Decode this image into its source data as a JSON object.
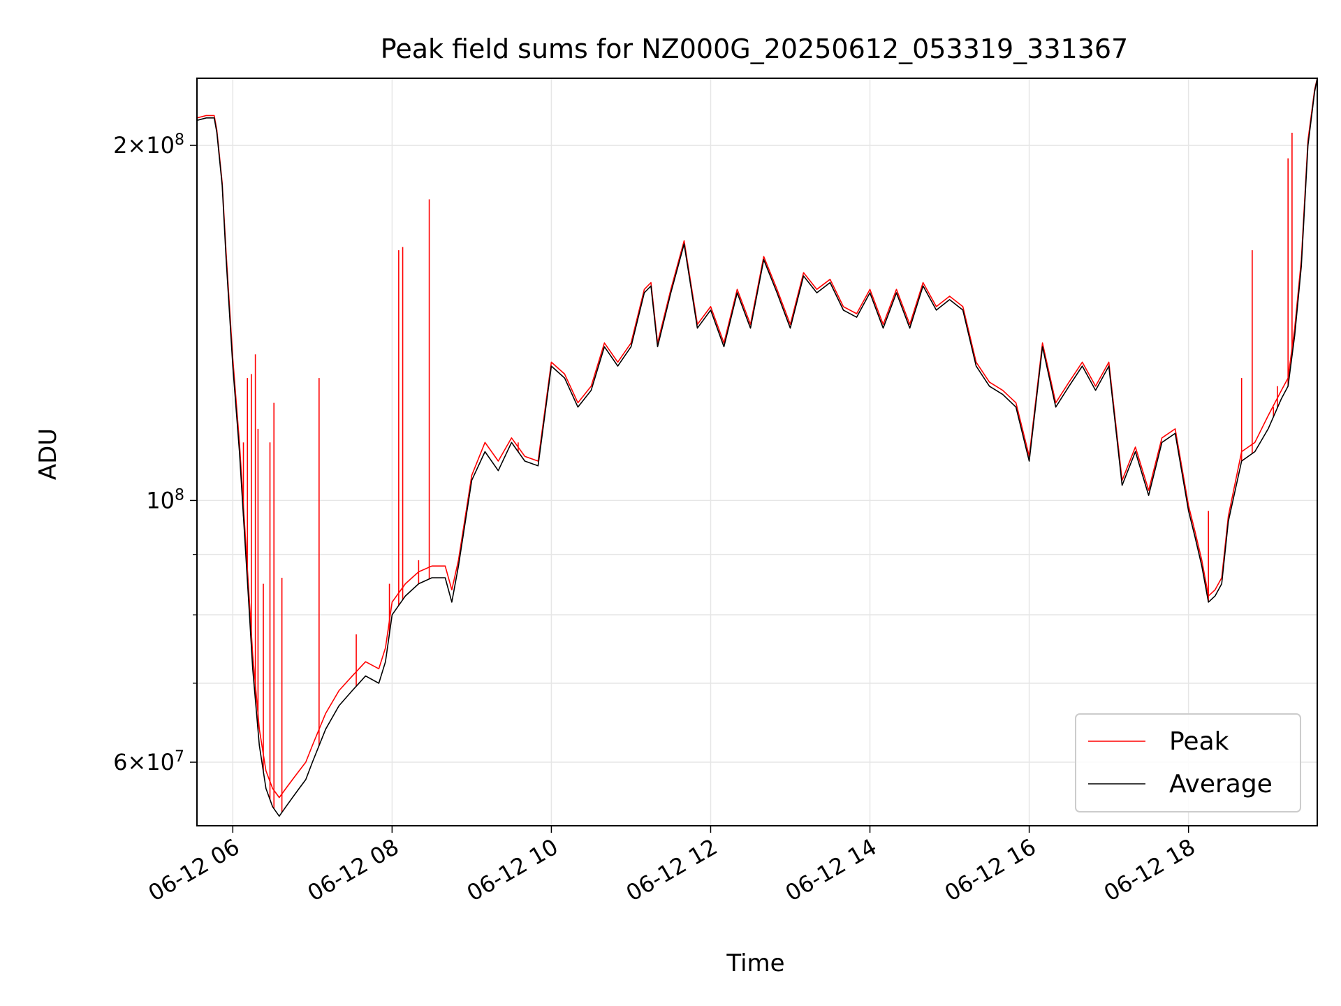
{
  "chart_data": {
    "type": "line",
    "title": "Peak field sums for NZ000G_20250612_053319_331367",
    "xlabel": "Time",
    "ylabel": "ADU",
    "yscale": "log",
    "xlim": [
      "2025-06-12T05:33",
      "2025-06-12T19:37"
    ],
    "ylim": [
      53000000,
      228000000
    ],
    "grid": true,
    "legend_position": "lower right",
    "x_ticks": [
      {
        "value": "2025-06-12T06:00",
        "label": "06-12 06"
      },
      {
        "value": "2025-06-12T08:00",
        "label": "06-12 08"
      },
      {
        "value": "2025-06-12T10:00",
        "label": "06-12 10"
      },
      {
        "value": "2025-06-12T12:00",
        "label": "06-12 12"
      },
      {
        "value": "2025-06-12T14:00",
        "label": "06-12 14"
      },
      {
        "value": "2025-06-12T16:00",
        "label": "06-12 16"
      },
      {
        "value": "2025-06-12T18:00",
        "label": "06-12 18"
      }
    ],
    "y_major_ticks": [
      {
        "value": 60000000,
        "mantissa": "6",
        "exp": "7"
      },
      {
        "value": 100000000,
        "mantissa": "",
        "exp": "8"
      },
      {
        "value": 200000000,
        "mantissa": "2",
        "exp": "8"
      }
    ],
    "y_minor_ticks": [
      70000000,
      80000000,
      90000000
    ],
    "series": [
      {
        "name": "Average",
        "color": "#000000",
        "x": [
          "2025-06-12T05:33",
          "2025-06-12T05:40",
          "2025-06-12T05:46",
          "2025-06-12T05:48",
          "2025-06-12T05:52",
          "2025-06-12T05:55",
          "2025-06-12T06:00",
          "2025-06-12T06:05",
          "2025-06-12T06:08",
          "2025-06-12T06:12",
          "2025-06-12T06:15",
          "2025-06-12T06:20",
          "2025-06-12T06:25",
          "2025-06-12T06:30",
          "2025-06-12T06:35",
          "2025-06-12T06:40",
          "2025-06-12T06:45",
          "2025-06-12T06:50",
          "2025-06-12T06:55",
          "2025-06-12T07:00",
          "2025-06-12T07:10",
          "2025-06-12T07:20",
          "2025-06-12T07:30",
          "2025-06-12T07:40",
          "2025-06-12T07:50",
          "2025-06-12T07:55",
          "2025-06-12T08:00",
          "2025-06-12T08:10",
          "2025-06-12T08:20",
          "2025-06-12T08:30",
          "2025-06-12T08:40",
          "2025-06-12T08:45",
          "2025-06-12T08:50",
          "2025-06-12T09:00",
          "2025-06-12T09:10",
          "2025-06-12T09:20",
          "2025-06-12T09:30",
          "2025-06-12T09:40",
          "2025-06-12T09:50",
          "2025-06-12T10:00",
          "2025-06-12T10:10",
          "2025-06-12T10:20",
          "2025-06-12T10:30",
          "2025-06-12T10:40",
          "2025-06-12T10:50",
          "2025-06-12T11:00",
          "2025-06-12T11:10",
          "2025-06-12T11:15",
          "2025-06-12T11:20",
          "2025-06-12T11:30",
          "2025-06-12T11:40",
          "2025-06-12T11:50",
          "2025-06-12T12:00",
          "2025-06-12T12:10",
          "2025-06-12T12:20",
          "2025-06-12T12:30",
          "2025-06-12T12:40",
          "2025-06-12T12:50",
          "2025-06-12T13:00",
          "2025-06-12T13:10",
          "2025-06-12T13:20",
          "2025-06-12T13:30",
          "2025-06-12T13:40",
          "2025-06-12T13:50",
          "2025-06-12T14:00",
          "2025-06-12T14:10",
          "2025-06-12T14:20",
          "2025-06-12T14:30",
          "2025-06-12T14:40",
          "2025-06-12T14:50",
          "2025-06-12T15:00",
          "2025-06-12T15:10",
          "2025-06-12T15:20",
          "2025-06-12T15:30",
          "2025-06-12T15:40",
          "2025-06-12T15:50",
          "2025-06-12T16:00",
          "2025-06-12T16:10",
          "2025-06-12T16:20",
          "2025-06-12T16:30",
          "2025-06-12T16:40",
          "2025-06-12T16:50",
          "2025-06-12T17:00",
          "2025-06-12T17:10",
          "2025-06-12T17:20",
          "2025-06-12T17:30",
          "2025-06-12T17:40",
          "2025-06-12T17:50",
          "2025-06-12T18:00",
          "2025-06-12T18:05",
          "2025-06-12T18:10",
          "2025-06-12T18:15",
          "2025-06-12T18:20",
          "2025-06-12T18:25",
          "2025-06-12T18:30",
          "2025-06-12T18:40",
          "2025-06-12T18:50",
          "2025-06-12T19:00",
          "2025-06-12T19:10",
          "2025-06-12T19:15",
          "2025-06-12T19:20",
          "2025-06-12T19:25",
          "2025-06-12T19:30",
          "2025-06-12T19:35",
          "2025-06-12T19:37"
        ],
        "values": [
          210000000,
          211000000,
          211000000,
          205000000,
          185000000,
          160000000,
          130000000,
          110000000,
          97000000,
          82000000,
          72000000,
          62000000,
          57000000,
          55000000,
          54000000,
          55000000,
          56000000,
          57000000,
          58000000,
          60000000,
          64000000,
          67000000,
          69000000,
          71000000,
          70000000,
          73000000,
          80000000,
          83000000,
          85000000,
          86000000,
          86000000,
          82000000,
          88000000,
          104000000,
          110000000,
          106000000,
          112000000,
          108000000,
          107000000,
          130000000,
          127000000,
          120000000,
          124000000,
          135000000,
          130000000,
          135000000,
          150000000,
          152000000,
          135000000,
          150000000,
          165000000,
          140000000,
          145000000,
          135000000,
          150000000,
          140000000,
          160000000,
          150000000,
          140000000,
          155000000,
          150000000,
          153000000,
          145000000,
          143000000,
          150000000,
          140000000,
          150000000,
          140000000,
          152000000,
          145000000,
          148000000,
          145000000,
          130000000,
          125000000,
          123000000,
          120000000,
          108000000,
          135000000,
          120000000,
          125000000,
          130000000,
          124000000,
          130000000,
          103000000,
          110000000,
          101000000,
          112000000,
          114000000,
          98000000,
          93000000,
          88000000,
          82000000,
          83000000,
          85000000,
          96000000,
          108000000,
          110000000,
          115000000,
          122000000,
          125000000,
          138000000,
          158000000,
          200000000,
          222000000,
          228000000
        ]
      },
      {
        "name": "Peak",
        "color": "#ff0000",
        "x": [
          "2025-06-12T05:33",
          "2025-06-12T05:40",
          "2025-06-12T05:46",
          "2025-06-12T05:48",
          "2025-06-12T05:52",
          "2025-06-12T05:55",
          "2025-06-12T06:00",
          "2025-06-12T06:05",
          "2025-06-12T06:08",
          "2025-06-12T06:12",
          "2025-06-12T06:15",
          "2025-06-12T06:20",
          "2025-06-12T06:25",
          "2025-06-12T06:30",
          "2025-06-12T06:35",
          "2025-06-12T06:40",
          "2025-06-12T06:45",
          "2025-06-12T06:50",
          "2025-06-12T06:55",
          "2025-06-12T07:00",
          "2025-06-12T07:10",
          "2025-06-12T07:20",
          "2025-06-12T07:30",
          "2025-06-12T07:40",
          "2025-06-12T07:50",
          "2025-06-12T07:55",
          "2025-06-12T08:00",
          "2025-06-12T08:10",
          "2025-06-12T08:20",
          "2025-06-12T08:30",
          "2025-06-12T08:40",
          "2025-06-12T08:45",
          "2025-06-12T08:50",
          "2025-06-12T09:00",
          "2025-06-12T09:10",
          "2025-06-12T09:20",
          "2025-06-12T09:30",
          "2025-06-12T09:40",
          "2025-06-12T09:50",
          "2025-06-12T10:00",
          "2025-06-12T10:10",
          "2025-06-12T10:20",
          "2025-06-12T10:30",
          "2025-06-12T10:40",
          "2025-06-12T10:50",
          "2025-06-12T11:00",
          "2025-06-12T11:10",
          "2025-06-12T11:15",
          "2025-06-12T11:20",
          "2025-06-12T11:30",
          "2025-06-12T11:40",
          "2025-06-12T11:50",
          "2025-06-12T12:00",
          "2025-06-12T12:10",
          "2025-06-12T12:20",
          "2025-06-12T12:30",
          "2025-06-12T12:40",
          "2025-06-12T12:50",
          "2025-06-12T13:00",
          "2025-06-12T13:10",
          "2025-06-12T13:20",
          "2025-06-12T13:30",
          "2025-06-12T13:40",
          "2025-06-12T13:50",
          "2025-06-12T14:00",
          "2025-06-12T14:10",
          "2025-06-12T14:20",
          "2025-06-12T14:30",
          "2025-06-12T14:40",
          "2025-06-12T14:50",
          "2025-06-12T15:00",
          "2025-06-12T15:10",
          "2025-06-12T15:20",
          "2025-06-12T15:30",
          "2025-06-12T15:40",
          "2025-06-12T15:50",
          "2025-06-12T16:00",
          "2025-06-12T16:10",
          "2025-06-12T16:20",
          "2025-06-12T16:30",
          "2025-06-12T16:40",
          "2025-06-12T16:50",
          "2025-06-12T17:00",
          "2025-06-12T17:10",
          "2025-06-12T17:20",
          "2025-06-12T17:30",
          "2025-06-12T17:40",
          "2025-06-12T17:50",
          "2025-06-12T18:00",
          "2025-06-12T18:05",
          "2025-06-12T18:10",
          "2025-06-12T18:15",
          "2025-06-12T18:20",
          "2025-06-12T18:25",
          "2025-06-12T18:30",
          "2025-06-12T18:40",
          "2025-06-12T18:50",
          "2025-06-12T19:00",
          "2025-06-12T19:10",
          "2025-06-12T19:15",
          "2025-06-12T19:20",
          "2025-06-12T19:25",
          "2025-06-12T19:30",
          "2025-06-12T19:35",
          "2025-06-12T19:37"
        ],
        "values": [
          211000000,
          212000000,
          212000000,
          206000000,
          186000000,
          162000000,
          132000000,
          112000000,
          99000000,
          84000000,
          74000000,
          64000000,
          59000000,
          57000000,
          56000000,
          57000000,
          58000000,
          59000000,
          60000000,
          62000000,
          66000000,
          69000000,
          71000000,
          73000000,
          72000000,
          75000000,
          82000000,
          85000000,
          87000000,
          88000000,
          88000000,
          84000000,
          89000000,
          105000000,
          112000000,
          108000000,
          113000000,
          109000000,
          108000000,
          131000000,
          128000000,
          121000000,
          125000000,
          136000000,
          131000000,
          136000000,
          151000000,
          153000000,
          136000000,
          151000000,
          166000000,
          141000000,
          146000000,
          136000000,
          151000000,
          141000000,
          161000000,
          151000000,
          141000000,
          156000000,
          151000000,
          154000000,
          146000000,
          144000000,
          151000000,
          141000000,
          151000000,
          141000000,
          153000000,
          146000000,
          149000000,
          146000000,
          131000000,
          126000000,
          124000000,
          121000000,
          109000000,
          136000000,
          121000000,
          126000000,
          131000000,
          125000000,
          131000000,
          104000000,
          111000000,
          102000000,
          113000000,
          115000000,
          99000000,
          94000000,
          89000000,
          83000000,
          84000000,
          86000000,
          97000000,
          110000000,
          112000000,
          118000000,
          124000000,
          127000000,
          140000000,
          160000000,
          202000000,
          223000000,
          228000000
        ],
        "spikes": [
          {
            "x": "2025-06-12T06:08",
            "value": 112000000
          },
          {
            "x": "2025-06-12T06:11",
            "value": 127000000
          },
          {
            "x": "2025-06-12T06:14",
            "value": 128000000
          },
          {
            "x": "2025-06-12T06:17",
            "value": 133000000
          },
          {
            "x": "2025-06-12T06:19",
            "value": 115000000
          },
          {
            "x": "2025-06-12T06:23",
            "value": 85000000
          },
          {
            "x": "2025-06-12T06:28",
            "value": 112000000
          },
          {
            "x": "2025-06-12T06:31",
            "value": 121000000
          },
          {
            "x": "2025-06-12T06:37",
            "value": 86000000
          },
          {
            "x": "2025-06-12T07:05",
            "value": 127000000
          },
          {
            "x": "2025-06-12T07:33",
            "value": 77000000
          },
          {
            "x": "2025-06-12T07:58",
            "value": 85000000
          },
          {
            "x": "2025-06-12T08:05",
            "value": 163000000
          },
          {
            "x": "2025-06-12T08:08",
            "value": 164000000
          },
          {
            "x": "2025-06-12T08:20",
            "value": 89000000
          },
          {
            "x": "2025-06-12T08:28",
            "value": 180000000
          },
          {
            "x": "2025-06-12T09:35",
            "value": 112000000
          },
          {
            "x": "2025-06-12T18:15",
            "value": 98000000
          },
          {
            "x": "2025-06-12T18:40",
            "value": 127000000
          },
          {
            "x": "2025-06-12T18:48",
            "value": 163000000
          },
          {
            "x": "2025-06-12T19:04",
            "value": 120000000
          },
          {
            "x": "2025-06-12T19:07",
            "value": 125000000
          },
          {
            "x": "2025-06-12T19:15",
            "value": 195000000
          },
          {
            "x": "2025-06-12T19:18",
            "value": 205000000
          }
        ]
      }
    ]
  }
}
